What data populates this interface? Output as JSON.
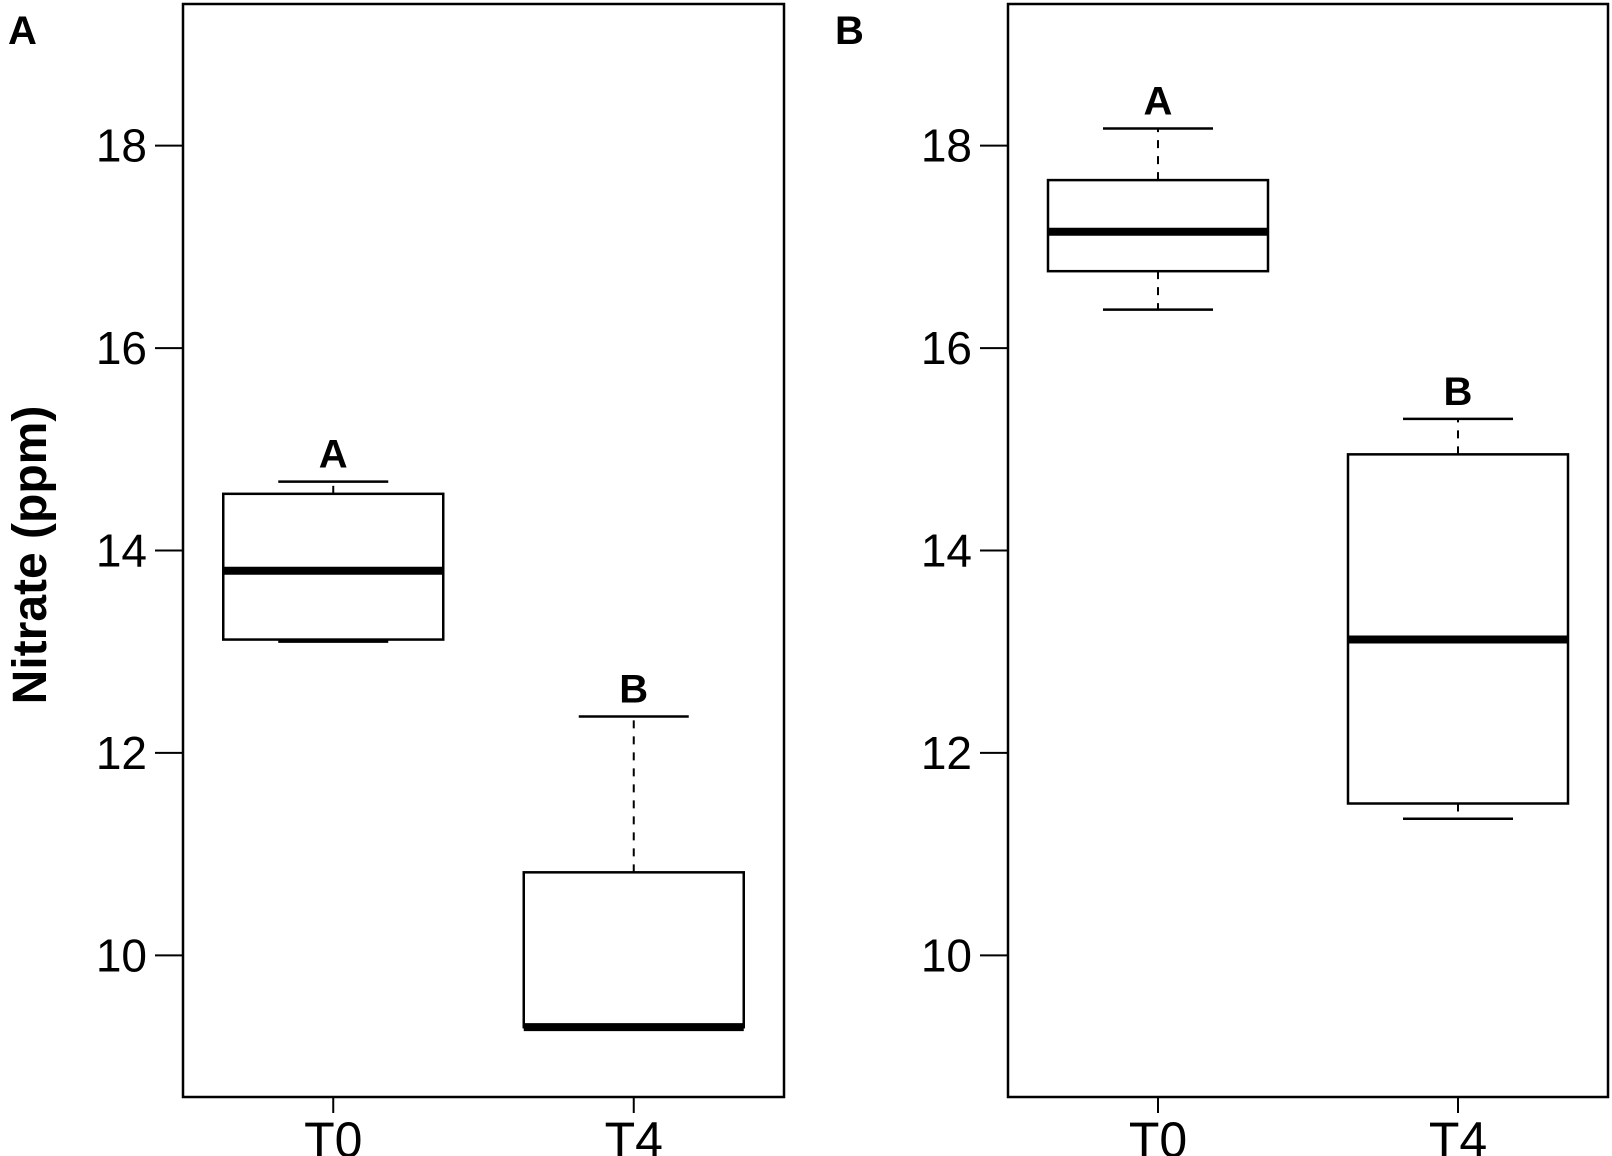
{
  "figure": {
    "ylabel": "Nitrate (ppm)"
  },
  "chart_data": [
    {
      "type": "box",
      "panel": "A",
      "categories": [
        "T0",
        "T4"
      ],
      "ylabel": "Nitrate (ppm)",
      "ylim": [
        8.6,
        19.4
      ],
      "yticks": [
        10,
        12,
        14,
        16,
        18
      ],
      "boxes": [
        {
          "category": "T0",
          "whisker_low": 13.1,
          "q1": 13.12,
          "median": 13.8,
          "q3": 14.56,
          "whisker_high": 14.68,
          "letter": "A"
        },
        {
          "category": "T4",
          "whisker_low": 9.29,
          "q1": 9.29,
          "median": 9.29,
          "q3": 10.82,
          "whisker_high": 12.36,
          "letter": "B"
        }
      ]
    },
    {
      "type": "box",
      "panel": "B",
      "categories": [
        "T0",
        "T4"
      ],
      "ylim": [
        8.6,
        19.4
      ],
      "yticks": [
        10,
        12,
        14,
        16,
        18
      ],
      "boxes": [
        {
          "category": "T0",
          "whisker_low": 16.38,
          "q1": 16.76,
          "median": 17.15,
          "q3": 17.66,
          "whisker_high": 18.17,
          "letter": "A"
        },
        {
          "category": "T4",
          "whisker_low": 11.35,
          "q1": 11.5,
          "median": 13.12,
          "q3": 14.95,
          "whisker_high": 15.3,
          "letter": "B"
        }
      ]
    }
  ]
}
